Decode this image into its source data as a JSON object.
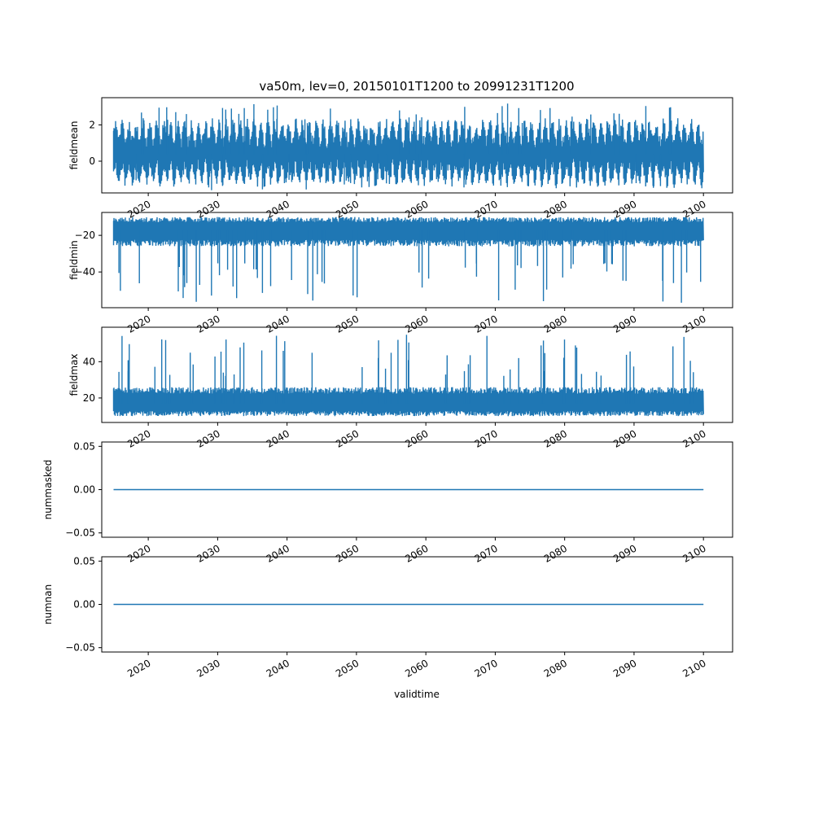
{
  "title": "va50m, lev=0, 20150101T1200 to 20991231T1200",
  "xlabel": "validtime",
  "x_ticks": [
    "2020",
    "2030",
    "2040",
    "2050",
    "2060",
    "2070",
    "2080",
    "2090",
    "2100"
  ],
  "line_color": "#1f77b4",
  "chart_data": [
    {
      "type": "line",
      "ylabel": "fieldmean",
      "xlim": [
        2013.3,
        2104.2
      ],
      "ylim": [
        -1.75,
        3.5
      ],
      "yticks": [
        0,
        2
      ],
      "ytick_labels": [
        "0",
        "2"
      ],
      "x_range": [
        2015.0,
        2100.0
      ],
      "series": [
        {
          "values": {
            "baseline": 0.4,
            "band_low": -1.0,
            "band_high": 1.9,
            "annual_cycle_amplitude": 1.0,
            "spike_high": 3.2,
            "spike_low": -1.6
          }
        }
      ]
    },
    {
      "type": "line",
      "ylabel": "fieldmin",
      "xlim": [
        2013.3,
        2104.2
      ],
      "ylim": [
        -59.5,
        -7.5
      ],
      "yticks": [
        -40,
        -20
      ],
      "ytick_labels": [
        "−40",
        "−20"
      ],
      "x_range": [
        2015.0,
        2100.0
      ],
      "series": [
        {
          "values": {
            "baseline": -17.0,
            "band_low": -26.0,
            "band_high": -10.0,
            "spike_low": -57.0,
            "spike_high": -8.5
          }
        }
      ]
    },
    {
      "type": "line",
      "ylabel": "fieldmax",
      "xlim": [
        2013.3,
        2104.2
      ],
      "ylim": [
        6.5,
        59.0
      ],
      "yticks": [
        20,
        40
      ],
      "ytick_labels": [
        "20",
        "40"
      ],
      "x_range": [
        2015.0,
        2100.0
      ],
      "series": [
        {
          "values": {
            "baseline": 17.0,
            "band_low": 10.0,
            "band_high": 26.0,
            "spike_high": 55.0,
            "spike_low": 8.5
          }
        }
      ]
    },
    {
      "type": "line",
      "ylabel": "nummasked",
      "xlim": [
        2013.3,
        2104.2
      ],
      "ylim": [
        -0.055,
        0.055
      ],
      "yticks": [
        -0.05,
        0.0,
        0.05
      ],
      "ytick_labels": [
        "−0.05",
        "0.00",
        "0.05"
      ],
      "x_range": [
        2015.0,
        2100.0
      ],
      "series": [
        {
          "values": {
            "constant": 0.0
          }
        }
      ]
    },
    {
      "type": "line",
      "ylabel": "numnan",
      "xlim": [
        2013.3,
        2104.2
      ],
      "ylim": [
        -0.055,
        0.055
      ],
      "yticks": [
        -0.05,
        0.0,
        0.05
      ],
      "ytick_labels": [
        "−0.05",
        "0.00",
        "0.05"
      ],
      "x_range": [
        2015.0,
        2100.0
      ],
      "series": [
        {
          "values": {
            "constant": 0.0
          }
        }
      ]
    }
  ]
}
